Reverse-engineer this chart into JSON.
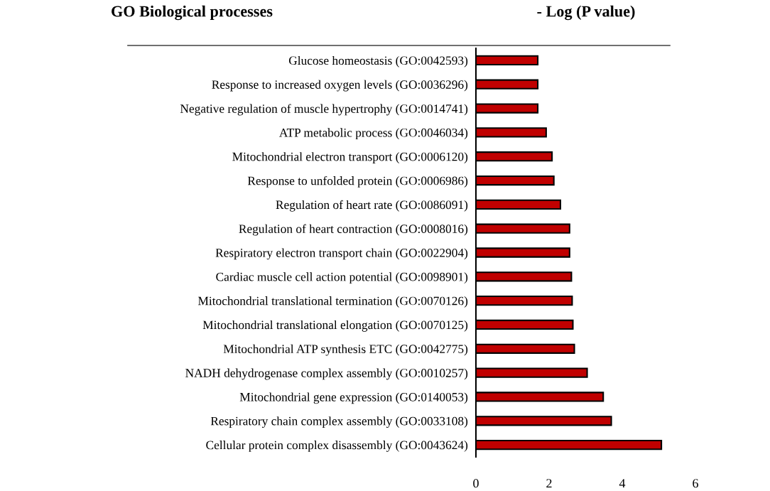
{
  "chart_data": {
    "type": "bar",
    "orientation": "horizontal",
    "title": "GO Biological processes",
    "xlabel": "- Log (P value)",
    "categories": [
      "Glucose homeostasis (GO:0042593)",
      "Response to increased oxygen levels (GO:0036296)",
      "Negative regulation of muscle hypertrophy (GO:0014741)",
      "ATP metabolic process (GO:0046034)",
      "Mitochondrial electron transport (GO:0006120)",
      "Response to unfolded protein (GO:0006986)",
      "Regulation of heart rate (GO:0086091)",
      "Regulation of heart contraction (GO:0008016)",
      "Respiratory electron transport chain (GO:0022904)",
      "Cardiac muscle cell action potential (GO:0098901)",
      "Mitochondrial translational termination (GO:0070126)",
      "Mitochondrial translational elongation (GO:0070125)",
      "Mitochondrial ATP synthesis ETC (GO:0042775)",
      "NADH dehydrogenase complex assembly (GO:0010257)",
      "Mitochondrial gene expression (GO:0140053)",
      "Respiratory chain complex assembly (GO:0033108)",
      "Cellular protein complex disassembly (GO:0043624)"
    ],
    "values": [
      1.69,
      1.69,
      1.69,
      1.92,
      2.08,
      2.13,
      2.31,
      2.56,
      2.56,
      2.61,
      2.63,
      2.65,
      2.69,
      3.04,
      3.48,
      3.7,
      5.07
    ],
    "color": "#c00000",
    "xlim": [
      0,
      6
    ],
    "xticks": [
      0,
      2,
      4,
      6
    ],
    "grid": false,
    "legend": false
  }
}
